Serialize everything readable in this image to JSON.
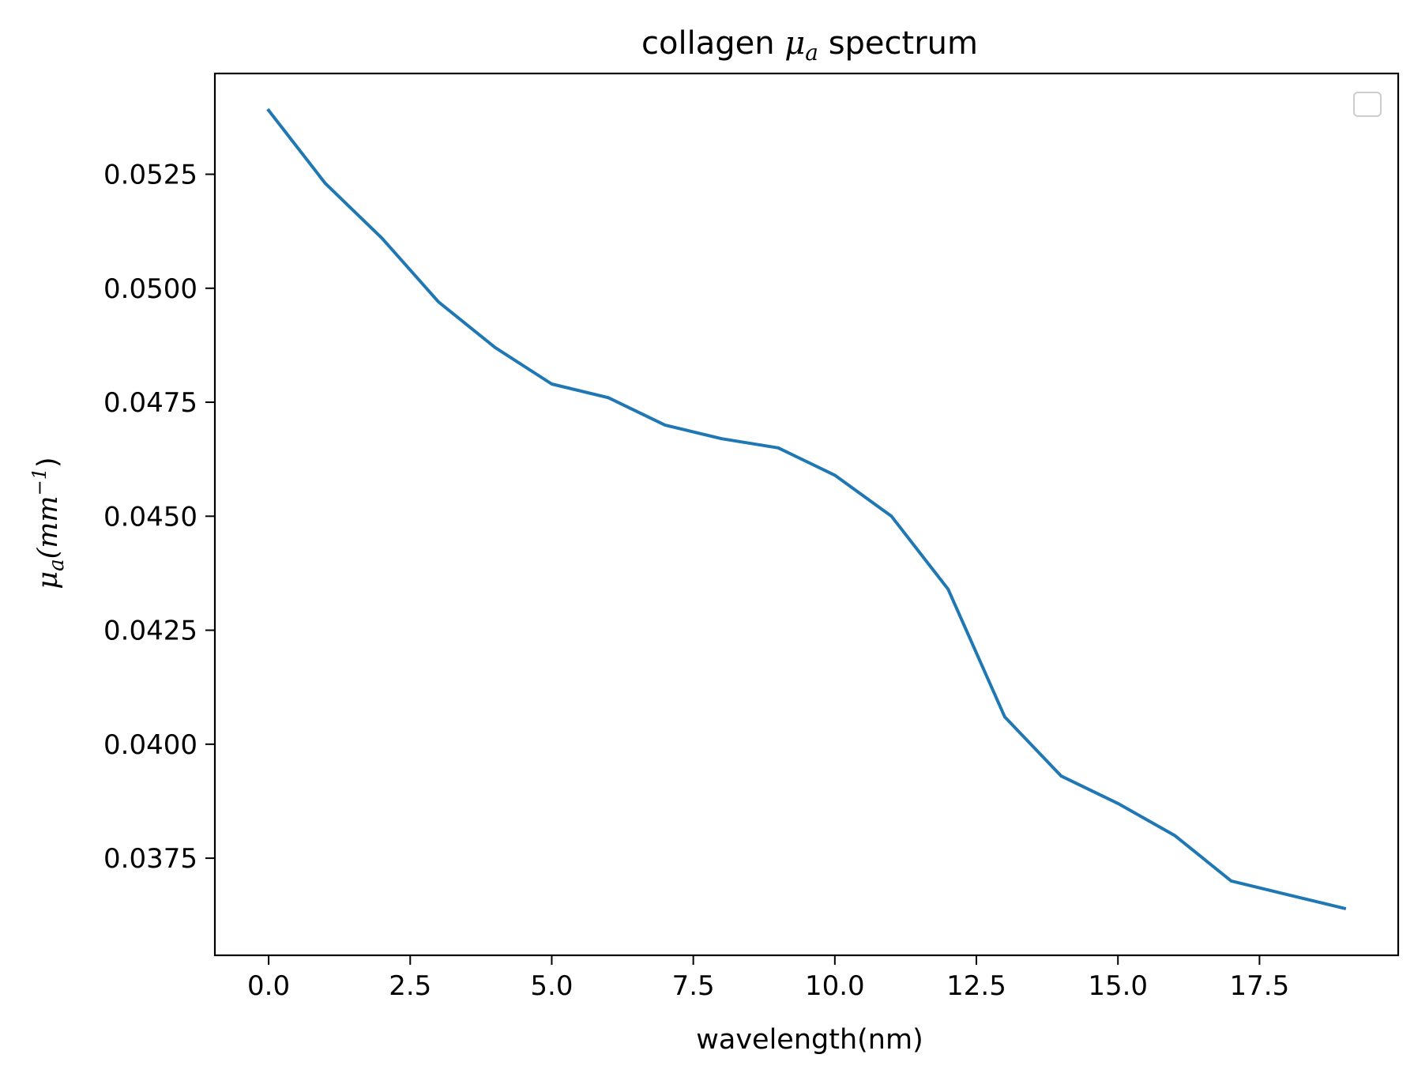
{
  "chart_data": {
    "type": "line",
    "title_prefix": "collagen ",
    "title_symbol": "μ",
    "title_subscript": "a",
    "title_suffix": " spectrum",
    "xlabel": "wavelength(nm)",
    "ylabel_symbol": "μ",
    "ylabel_subscript": "a",
    "ylabel_unit_open": "(mm",
    "ylabel_unit_sup": "−1",
    "ylabel_unit_close": ")",
    "xlim": [
      -0.95,
      19.95
    ],
    "ylim": [
      0.03537,
      0.05471
    ],
    "x_ticks": [
      0.0,
      2.5,
      5.0,
      7.5,
      10.0,
      12.5,
      15.0,
      17.5
    ],
    "x_tick_labels": [
      "0.0",
      "2.5",
      "5.0",
      "7.5",
      "10.0",
      "12.5",
      "15.0",
      "17.5"
    ],
    "y_ticks": [
      0.0375,
      0.04,
      0.0425,
      0.045,
      0.0475,
      0.05,
      0.0525
    ],
    "y_tick_labels": [
      "0.0375",
      "0.0400",
      "0.0425",
      "0.0450",
      "0.0475",
      "0.0500",
      "0.0525"
    ],
    "grid": false,
    "legend": {
      "location": "upper-right",
      "entries": []
    },
    "series": [
      {
        "color": "#1f77b4",
        "x": [
          0,
          1,
          2,
          3,
          4,
          5,
          6,
          7,
          8,
          9,
          10,
          11,
          12,
          13,
          14,
          15,
          16,
          17,
          18,
          19
        ],
        "y": [
          0.0539,
          0.0523,
          0.0511,
          0.0497,
          0.0487,
          0.0479,
          0.0476,
          0.047,
          0.0467,
          0.0465,
          0.0459,
          0.045,
          0.0434,
          0.0406,
          0.0393,
          0.0387,
          0.038,
          0.037,
          0.0367,
          0.0364
        ]
      }
    ]
  }
}
